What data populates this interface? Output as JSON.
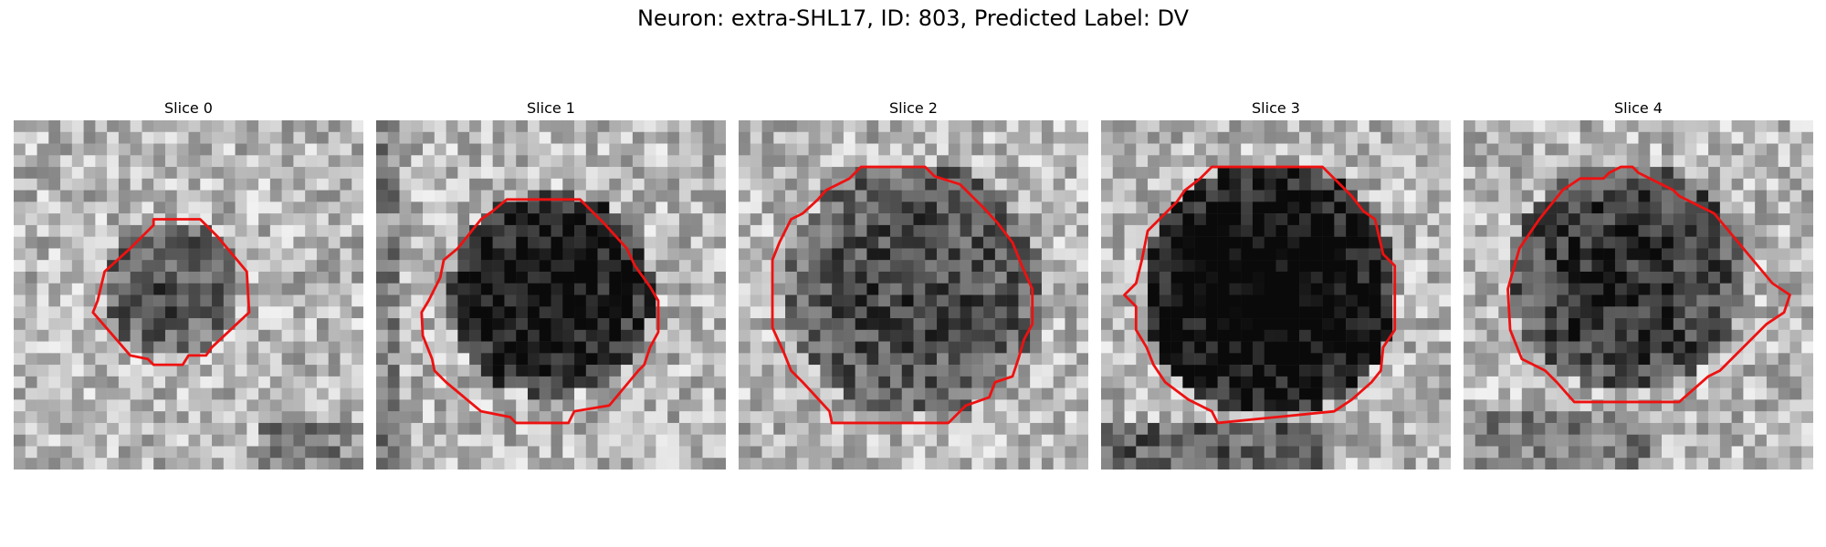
{
  "figure": {
    "title": "Neuron: extra-SHL17, ID: 803, Predicted Label: DV"
  },
  "panels": [
    {
      "title": "Slice 0"
    },
    {
      "title": "Slice 1"
    },
    {
      "title": "Slice 2"
    },
    {
      "title": "Slice 3"
    },
    {
      "title": "Slice 4"
    }
  ],
  "colors": {
    "contour": "#ee1111"
  }
}
